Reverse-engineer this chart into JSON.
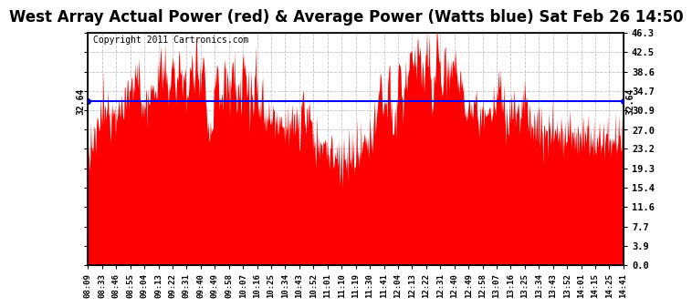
{
  "title": "West Array Actual Power (red) & Average Power (Watts blue) Sat Feb 26 14:50",
  "copyright": "Copyright 2011 Cartronics.com",
  "average_power": 32.64,
  "ymin": 0.0,
  "ymax": 46.3,
  "yticks": [
    0.0,
    3.9,
    7.7,
    11.6,
    15.4,
    19.3,
    23.2,
    27.0,
    30.9,
    34.7,
    38.6,
    42.5,
    46.3
  ],
  "ytick_labels_right": [
    "0.0",
    "3.9",
    "7.7",
    "11.6",
    "15.4",
    "19.3",
    "23.2",
    "27.0",
    "30.9",
    "34.7",
    "38.6",
    "42.5",
    "46.3"
  ],
  "fill_color": "#FF0000",
  "line_color": "#0000FF",
  "background_color": "#FFFFFF",
  "plot_bg_color": "#FFFFFF",
  "grid_color": "#BBBBBB",
  "title_fontsize": 12,
  "copyright_fontsize": 7,
  "xtick_labels": [
    "08:09",
    "08:33",
    "08:46",
    "08:55",
    "09:04",
    "09:13",
    "09:22",
    "09:31",
    "09:40",
    "09:49",
    "09:58",
    "10:07",
    "10:16",
    "10:25",
    "10:34",
    "10:43",
    "10:52",
    "11:01",
    "11:10",
    "11:19",
    "11:30",
    "11:41",
    "12:04",
    "12:13",
    "12:22",
    "12:31",
    "12:40",
    "12:49",
    "12:58",
    "13:07",
    "13:16",
    "13:25",
    "13:34",
    "13:43",
    "13:52",
    "14:01",
    "14:15",
    "14:25",
    "14:41"
  ],
  "n_points": 780,
  "seed": 12345
}
